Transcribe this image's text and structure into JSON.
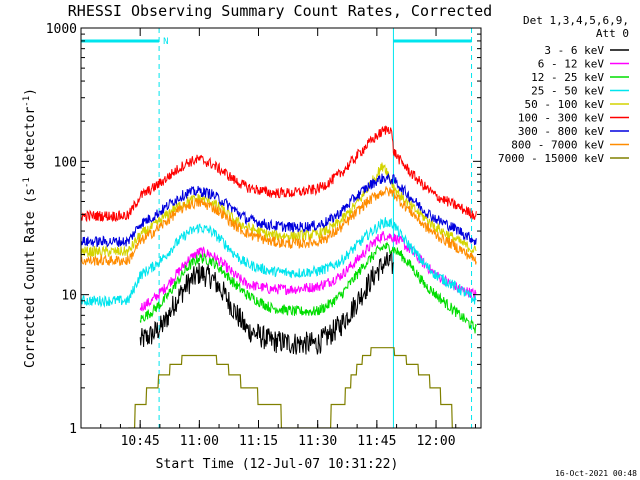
{
  "chart_data": {
    "type": "line",
    "title": "RHESSI Observing Summary Count Rates, Corrected",
    "xlabel": "Start Time (12-Jul-07 10:31:22)",
    "ylabel_main": "Corrected Count Rate (s",
    "ylabel_mid": " detector",
    "ylabel_end": ")",
    "ylabel_sup": "-1",
    "yscale": "log",
    "ylim": [
      1,
      1000
    ],
    "xlim_minutes": [
      10.5,
      12.19
    ],
    "x_ticks": [
      {
        "t": 10.75,
        "label": "10:45"
      },
      {
        "t": 11.0,
        "label": "11:00"
      },
      {
        "t": 11.25,
        "label": "11:15"
      },
      {
        "t": 11.5,
        "label": "11:30"
      },
      {
        "t": 11.75,
        "label": "11:45"
      },
      {
        "t": 12.0,
        "label": "12:00"
      }
    ],
    "y_ticks": [
      {
        "v": 1,
        "label": "1"
      },
      {
        "v": 10,
        "label": "10"
      },
      {
        "v": 100,
        "label": "100"
      },
      {
        "v": 1000,
        "label": "1000"
      }
    ],
    "legend_header": [
      "Det 1,3,4,5,6,9,",
      "Att 0"
    ],
    "series": [
      {
        "name": "3 - 6 keV",
        "color": "#000000",
        "x": [
          10.75,
          10.8,
          10.85,
          10.9,
          10.95,
          11.0,
          11.05,
          11.1,
          11.15,
          11.2,
          11.3,
          11.4,
          11.5,
          11.55,
          11.6,
          11.65,
          11.7,
          11.75,
          11.78,
          11.81,
          11.82
        ],
        "y": [
          4.5,
          5,
          6,
          9,
          12,
          14.5,
          13.5,
          10.5,
          7.5,
          5.5,
          4.5,
          4.3,
          4.3,
          5,
          6,
          8,
          11,
          15,
          17,
          17.5,
          16
        ]
      },
      {
        "name": "6 - 12 keV",
        "color": "#ff00ff",
        "x": [
          10.75,
          10.8,
          10.85,
          10.9,
          10.95,
          11.0,
          11.05,
          11.1,
          11.15,
          11.2,
          11.3,
          11.4,
          11.5,
          11.55,
          11.6,
          11.65,
          11.7,
          11.75,
          11.78,
          11.82,
          11.85,
          11.9,
          11.95,
          12.0,
          12.1,
          12.17
        ],
        "y": [
          8,
          9,
          11,
          14,
          18,
          21,
          20,
          17,
          14,
          12,
          11,
          11,
          11.5,
          12.5,
          14,
          17,
          21,
          26,
          28,
          27,
          25,
          21,
          17,
          14,
          11,
          10
        ]
      },
      {
        "name": "12 - 25 keV",
        "color": "#00dd00",
        "x": [
          10.75,
          10.8,
          10.85,
          10.9,
          10.95,
          11.0,
          11.05,
          11.1,
          11.15,
          11.2,
          11.3,
          11.4,
          11.5,
          11.55,
          11.6,
          11.65,
          11.7,
          11.75,
          11.78,
          11.82,
          11.85,
          11.9,
          11.95,
          12.0,
          12.1,
          12.17
        ],
        "y": [
          6.5,
          7.5,
          9,
          12,
          16,
          19,
          18,
          15,
          12,
          10,
          8,
          7.5,
          7.5,
          8.5,
          10,
          13,
          17,
          21,
          23,
          22,
          20,
          16,
          12,
          10,
          7,
          5.5
        ]
      },
      {
        "name": "25 - 50 keV",
        "color": "#00e5ee",
        "x": [
          10.5,
          10.7,
          10.75,
          10.8,
          10.85,
          10.9,
          10.95,
          11.0,
          11.05,
          11.1,
          11.15,
          11.2,
          11.3,
          11.4,
          11.5,
          11.55,
          11.6,
          11.65,
          11.7,
          11.75,
          11.78,
          11.82,
          11.85,
          11.9,
          11.95,
          12.0,
          12.1,
          12.17
        ],
        "y": [
          9,
          9,
          14,
          16,
          19,
          24,
          29,
          32,
          30,
          25,
          20,
          17,
          15,
          14.5,
          15,
          16,
          18,
          22,
          27,
          32,
          35,
          34,
          28,
          22,
          17,
          14,
          11,
          9
        ]
      },
      {
        "name": "50 - 100 keV",
        "color": "#d4d400",
        "x": [
          10.5,
          10.7,
          10.75,
          10.8,
          10.85,
          10.9,
          10.95,
          11.0,
          11.05,
          11.1,
          11.15,
          11.2,
          11.3,
          11.4,
          11.5,
          11.55,
          11.6,
          11.65,
          11.7,
          11.75,
          11.78,
          11.82,
          11.85,
          11.9,
          11.95,
          12.0,
          12.1,
          12.17
        ],
        "y": [
          21,
          21,
          28,
          32,
          38,
          45,
          50,
          53,
          50,
          43,
          36,
          32,
          28,
          27.5,
          28.5,
          31,
          36,
          45,
          58,
          80,
          95,
          65,
          55,
          45,
          38,
          32,
          25,
          21
        ]
      },
      {
        "name": "100 - 300 keV",
        "color": "#ff0000",
        "x": [
          10.5,
          10.7,
          10.75,
          10.8,
          10.85,
          10.9,
          10.95,
          11.0,
          11.05,
          11.1,
          11.15,
          11.2,
          11.3,
          11.4,
          11.5,
          11.55,
          11.6,
          11.65,
          11.7,
          11.75,
          11.78,
          11.81,
          11.82,
          11.85,
          11.9,
          11.95,
          12.0,
          12.1,
          12.17
        ],
        "y": [
          39,
          39,
          55,
          62,
          72,
          85,
          98,
          104,
          96,
          84,
          72,
          64,
          58,
          58,
          62,
          70,
          82,
          102,
          128,
          155,
          170,
          178,
          120,
          100,
          80,
          65,
          55,
          45,
          39
        ]
      },
      {
        "name": "300 - 800 keV",
        "color": "#0000dd",
        "x": [
          10.5,
          10.7,
          10.75,
          10.8,
          10.85,
          10.9,
          10.95,
          11.0,
          11.05,
          11.1,
          11.15,
          11.2,
          11.3,
          11.4,
          11.5,
          11.55,
          11.6,
          11.65,
          11.7,
          11.75,
          11.78,
          11.82,
          11.85,
          11.9,
          11.95,
          12.0,
          12.1,
          12.17
        ],
        "y": [
          25,
          25,
          34,
          38,
          44,
          52,
          58,
          60,
          57,
          50,
          43,
          37,
          33,
          32,
          33,
          36,
          42,
          52,
          62,
          72,
          75,
          73,
          64,
          52,
          43,
          37,
          30,
          25
        ]
      },
      {
        "name": "800 - 7000 keV",
        "color": "#ff8c00",
        "x": [
          10.5,
          10.7,
          10.75,
          10.8,
          10.85,
          10.9,
          10.95,
          11.0,
          11.05,
          11.1,
          11.15,
          11.2,
          11.3,
          11.4,
          11.5,
          11.55,
          11.6,
          11.65,
          11.7,
          11.75,
          11.78,
          11.82,
          11.85,
          11.9,
          11.95,
          12.0,
          12.1,
          12.17
        ],
        "y": [
          18,
          18,
          25,
          29,
          34,
          41,
          47,
          49,
          46,
          40,
          33,
          29,
          25,
          24,
          25,
          27.5,
          32,
          39,
          48,
          56,
          60,
          58,
          50,
          41,
          33,
          28,
          22,
          18
        ]
      },
      {
        "name": "7000 - 15000 keV",
        "color": "#808000",
        "x": [
          10.7,
          10.75,
          10.8,
          10.85,
          10.9,
          10.95,
          11.0,
          11.05,
          11.1,
          11.15,
          11.2,
          11.3,
          11.4,
          11.5,
          11.6,
          11.65,
          11.7,
          11.75,
          11.8,
          11.85,
          11.9,
          11.95,
          12.0,
          12.1
        ],
        "y": [
          1,
          1.5,
          2,
          2.5,
          3,
          3.5,
          3.5,
          3.5,
          3,
          2.5,
          2,
          1.5,
          1,
          1,
          1.5,
          2.5,
          3.5,
          4,
          4,
          3.5,
          3,
          2.5,
          2,
          1
        ]
      }
    ],
    "intervals": [
      {
        "x0": 10.5,
        "x1": 10.83,
        "label": "N",
        "color": "#00e5ee"
      },
      {
        "x0": 11.82,
        "x1": 12.15,
        "label": "",
        "color": "#00e5ee"
      }
    ],
    "footer": "16-Oct-2021 00:48"
  }
}
